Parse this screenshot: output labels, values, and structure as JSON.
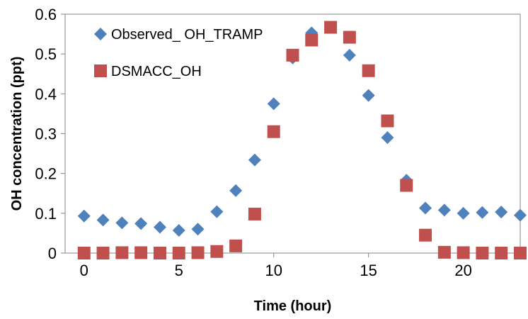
{
  "chart_data": {
    "type": "scatter",
    "title": "",
    "xlabel": "Time (hour)",
    "ylabel": "OH concentration (ppt)",
    "xlim": [
      -1,
      23
    ],
    "ylim": [
      0,
      0.6
    ],
    "xticks": [
      0,
      5,
      10,
      15,
      20
    ],
    "xtick_labels": [
      "0",
      "5",
      "10",
      "15",
      "20"
    ],
    "yticks": [
      0,
      0.1,
      0.2,
      0.3,
      0.4,
      0.5,
      0.6
    ],
    "ytick_labels": [
      "0",
      "0.1",
      "0.2",
      "0.3",
      "0.4",
      "0.5",
      "0.6"
    ],
    "grid": "none",
    "legend_position": "top-left",
    "series": [
      {
        "name": "Observed_ OH_TRAMP",
        "marker": "diamond",
        "color": "#4F81BD",
        "x": [
          0,
          1,
          2,
          3,
          4,
          5,
          6,
          7,
          8,
          9,
          10,
          11,
          12,
          13,
          14,
          15,
          16,
          17,
          18,
          19,
          20,
          21,
          22,
          23
        ],
        "y": [
          0.093,
          0.083,
          0.076,
          0.074,
          0.065,
          0.057,
          0.06,
          0.104,
          0.157,
          0.234,
          0.375,
          0.49,
          0.553,
          0.567,
          0.497,
          0.396,
          0.29,
          0.183,
          0.113,
          0.108,
          0.1,
          0.102,
          0.103,
          0.095
        ]
      },
      {
        "name": "DSMACC_OH",
        "marker": "square",
        "color": "#C0504D",
        "x": [
          0,
          1,
          2,
          3,
          4,
          5,
          6,
          7,
          8,
          9,
          10,
          11,
          12,
          13,
          14,
          15,
          16,
          17,
          18,
          19,
          20,
          21,
          22,
          23
        ],
        "y": [
          0,
          0,
          0.001,
          0.001,
          0,
          0,
          0.001,
          0.004,
          0.018,
          0.098,
          0.305,
          0.497,
          0.535,
          0.567,
          0.542,
          0.458,
          0.332,
          0.17,
          0.045,
          0.002,
          0.001,
          0,
          0,
          0
        ]
      }
    ]
  }
}
